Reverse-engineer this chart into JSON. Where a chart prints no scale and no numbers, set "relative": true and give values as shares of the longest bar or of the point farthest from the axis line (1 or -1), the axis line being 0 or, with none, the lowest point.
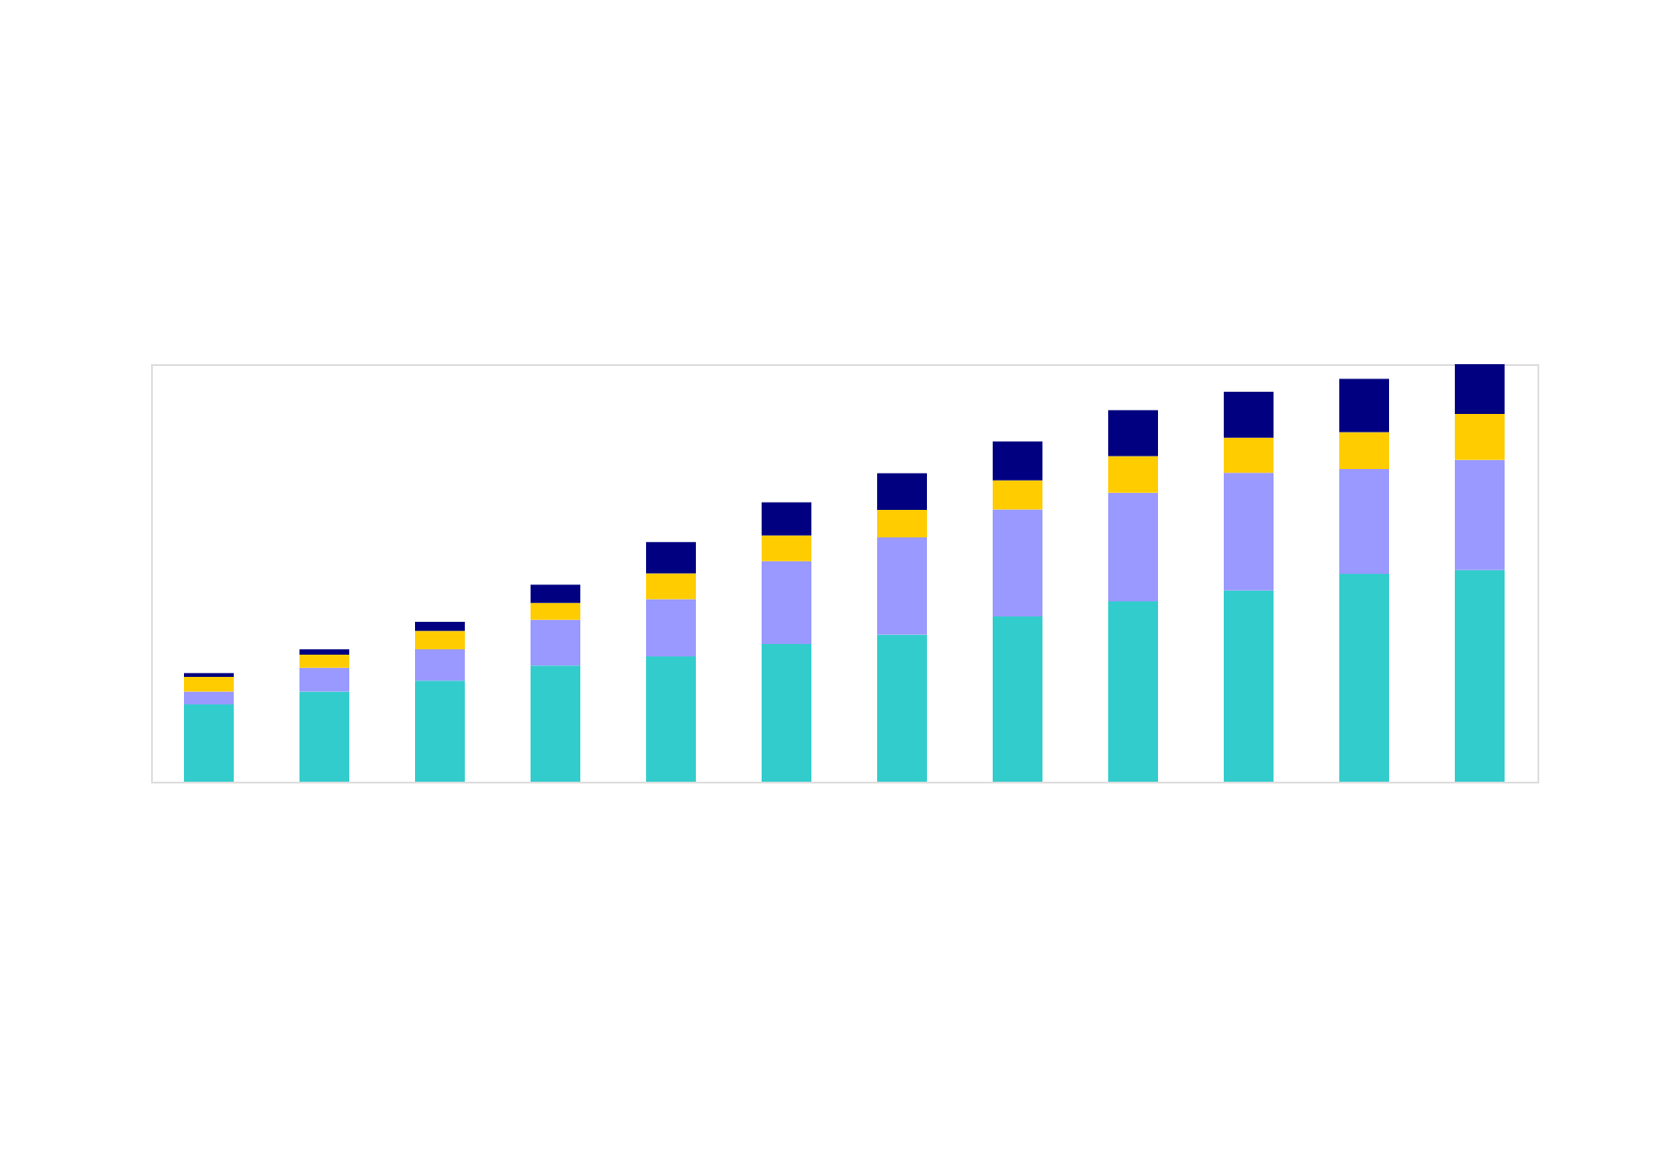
{
  "chart_data": {
    "type": "bar",
    "stacked": true,
    "relative": true,
    "categories": [
      null,
      null,
      null,
      null,
      null,
      null,
      null,
      null,
      null,
      null,
      null,
      null
    ],
    "series": [
      {
        "color": "#33cccc",
        "values": [
          0.185,
          0.216,
          0.242,
          0.278,
          0.3,
          0.33,
          0.352,
          0.396,
          0.432,
          0.458,
          0.498,
          0.507
        ]
      },
      {
        "color": "#9999ff",
        "values": [
          0.031,
          0.057,
          0.075,
          0.11,
          0.137,
          0.198,
          0.233,
          0.256,
          0.26,
          0.282,
          0.251,
          0.264
        ]
      },
      {
        "color": "#ffcc00",
        "values": [
          0.035,
          0.031,
          0.044,
          0.04,
          0.062,
          0.062,
          0.066,
          0.07,
          0.088,
          0.084,
          0.088,
          0.11
        ]
      },
      {
        "color": "#000080",
        "values": [
          0.009,
          0.013,
          0.022,
          0.044,
          0.075,
          0.079,
          0.088,
          0.093,
          0.11,
          0.11,
          0.128,
          0.119
        ]
      }
    ]
  }
}
